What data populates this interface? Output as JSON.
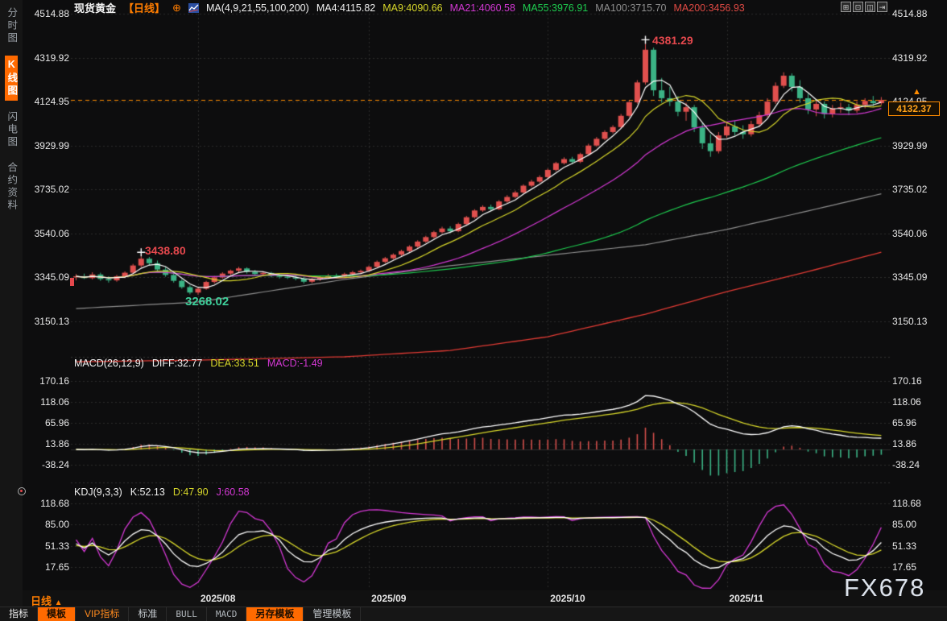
{
  "header": {
    "symbol": "现货黄金",
    "period": "【日线】",
    "add_icon": "⊕",
    "ma_title": "MA(4,9,21,55,100,200)",
    "ma_values": [
      {
        "label": "MA4:4115.82",
        "color": "#f0f0f0"
      },
      {
        "label": "MA9:4090.66",
        "color": "#d6d62a"
      },
      {
        "label": "MA21:4060.58",
        "color": "#d438d4"
      },
      {
        "label": "MA55:3976.91",
        "color": "#1ecb4f"
      },
      {
        "label": "MA100:3715.70",
        "color": "#8f8f8f"
      },
      {
        "label": "MA200:3456.93",
        "color": "#e04a44"
      }
    ],
    "window_icons": [
      "⊞",
      "⊡",
      "◫",
      "⇥"
    ]
  },
  "sidebar": {
    "items": [
      {
        "label": "分时图",
        "active": false
      },
      {
        "label": "K线图",
        "active": true
      },
      {
        "label": "闪电图",
        "active": false
      },
      {
        "label": "合约资料",
        "active": false
      }
    ]
  },
  "axes": {
    "price": [
      "4514.88",
      "4319.92",
      "4124.95",
      "3929.99",
      "3735.02",
      "3540.06",
      "3345.09",
      "3150.13"
    ],
    "macd": [
      "170.16",
      "118.06",
      "65.96",
      "13.86",
      "-38.24"
    ],
    "kdj": [
      "118.68",
      "85.00",
      "51.33",
      "17.65"
    ],
    "dates": [
      "2025/08",
      "2025/09",
      "2025/10",
      "2025/11"
    ]
  },
  "annotations": {
    "peak_high": "4381.29",
    "local_high": "3438.80",
    "local_low": "3268.02",
    "last_price_label": "4132.37",
    "up_arrow": "▲"
  },
  "macd_panel": {
    "title": "MACD(26,12,9)",
    "diff": "DIFF:32.77",
    "dea": "DEA:33.51",
    "macd": "MACD:-1.49"
  },
  "kdj_panel": {
    "title": "KDJ(9,3,3)",
    "k": "K:52.13",
    "d": "D:47.90",
    "j": "J:60.58"
  },
  "footer": {
    "period_label": "日线",
    "period_arrow": "▲",
    "tabs": [
      {
        "label": "指标",
        "style": "normal"
      },
      {
        "label": "模板",
        "style": "active"
      },
      {
        "label": "VIP指标",
        "style": "orange"
      },
      {
        "label": "标准",
        "style": "muted"
      },
      {
        "label": "BULL",
        "style": "mono"
      },
      {
        "label": "MACD",
        "style": "mono"
      },
      {
        "label": "另存模板",
        "style": "active"
      },
      {
        "label": "管理模板",
        "style": "muted"
      }
    ]
  },
  "watermark": "FX678",
  "colors": {
    "up": "#e0504e",
    "down": "#3bb385",
    "anno_red": "#e5484d",
    "anno_green": "#3ecf9a",
    "orange": "#ff8c00",
    "white": "#f0f0f0",
    "yellow": "#d6d62a",
    "magenta": "#d438d4",
    "green": "#1ecb4f",
    "gray": "#8f8f8f",
    "red_line": "#e03b34",
    "grid": "#2c2c2c",
    "hist_pos": "#d34f4b",
    "hist_neg": "#3bb385"
  },
  "chart_data": {
    "type": "candlestick",
    "title": "现货黄金 日线 (Spot Gold Daily)",
    "price_ticks": [
      4514.88,
      4319.92,
      4124.95,
      3929.99,
      3735.02,
      3540.06,
      3345.09,
      3150.13
    ],
    "macd_ticks": [
      170.16,
      118.06,
      65.96,
      13.86,
      -38.24
    ],
    "kdj_ticks": [
      118.68,
      85.0,
      51.33,
      17.65
    ],
    "last_price": 4132.37,
    "month_ticks": [
      {
        "label": "2025/08",
        "index": 15
      },
      {
        "label": "2025/09",
        "index": 36
      },
      {
        "label": "2025/10",
        "index": 58
      },
      {
        "label": "2025/11",
        "index": 80
      }
    ],
    "peak_marker_indices": [
      8,
      70
    ],
    "candles": [
      [
        3345,
        3360,
        3332,
        3350
      ],
      [
        3350,
        3362,
        3338,
        3342
      ],
      [
        3342,
        3368,
        3336,
        3358
      ],
      [
        3358,
        3366,
        3330,
        3338
      ],
      [
        3338,
        3350,
        3322,
        3332
      ],
      [
        3332,
        3356,
        3326,
        3350
      ],
      [
        3350,
        3372,
        3342,
        3366
      ],
      [
        3366,
        3405,
        3360,
        3398
      ],
      [
        3398,
        3438.8,
        3390,
        3428
      ],
      [
        3428,
        3436,
        3398,
        3408
      ],
      [
        3408,
        3420,
        3372,
        3380
      ],
      [
        3380,
        3392,
        3348,
        3356
      ],
      [
        3356,
        3366,
        3322,
        3330
      ],
      [
        3330,
        3338,
        3295,
        3302
      ],
      [
        3302,
        3310,
        3270,
        3278
      ],
      [
        3278,
        3300,
        3268.02,
        3295
      ],
      [
        3295,
        3330,
        3290,
        3325
      ],
      [
        3325,
        3352,
        3318,
        3345
      ],
      [
        3345,
        3368,
        3340,
        3362
      ],
      [
        3362,
        3380,
        3355,
        3375
      ],
      [
        3375,
        3392,
        3368,
        3385
      ],
      [
        3385,
        3390,
        3362,
        3370
      ],
      [
        3370,
        3378,
        3352,
        3360
      ],
      [
        3360,
        3372,
        3350,
        3365
      ],
      [
        3365,
        3370,
        3345,
        3352
      ],
      [
        3352,
        3360,
        3340,
        3348
      ],
      [
        3348,
        3358,
        3338,
        3344
      ],
      [
        3344,
        3355,
        3332,
        3340
      ],
      [
        3340,
        3348,
        3318,
        3326
      ],
      [
        3326,
        3342,
        3320,
        3336
      ],
      [
        3336,
        3352,
        3330,
        3346
      ],
      [
        3346,
        3360,
        3340,
        3354
      ],
      [
        3354,
        3362,
        3342,
        3348
      ],
      [
        3348,
        3366,
        3344,
        3360
      ],
      [
        3360,
        3374,
        3354,
        3368
      ],
      [
        3368,
        3380,
        3360,
        3374
      ],
      [
        3374,
        3398,
        3370,
        3392
      ],
      [
        3392,
        3420,
        3388,
        3414
      ],
      [
        3414,
        3436,
        3408,
        3430
      ],
      [
        3430,
        3452,
        3424,
        3446
      ],
      [
        3446,
        3468,
        3440,
        3462
      ],
      [
        3462,
        3488,
        3456,
        3482
      ],
      [
        3482,
        3510,
        3476,
        3504
      ],
      [
        3504,
        3530,
        3498,
        3524
      ],
      [
        3524,
        3552,
        3518,
        3546
      ],
      [
        3546,
        3570,
        3540,
        3562
      ],
      [
        3562,
        3572,
        3542,
        3550
      ],
      [
        3550,
        3588,
        3546,
        3582
      ],
      [
        3582,
        3618,
        3578,
        3612
      ],
      [
        3612,
        3648,
        3606,
        3642
      ],
      [
        3642,
        3665,
        3636,
        3658
      ],
      [
        3658,
        3668,
        3640,
        3648
      ],
      [
        3648,
        3688,
        3644,
        3682
      ],
      [
        3682,
        3710,
        3676,
        3702
      ],
      [
        3702,
        3730,
        3696,
        3722
      ],
      [
        3722,
        3758,
        3718,
        3752
      ],
      [
        3752,
        3778,
        3746,
        3770
      ],
      [
        3770,
        3798,
        3764,
        3790
      ],
      [
        3790,
        3828,
        3786,
        3822
      ],
      [
        3822,
        3858,
        3816,
        3852
      ],
      [
        3852,
        3878,
        3846,
        3870
      ],
      [
        3870,
        3880,
        3848,
        3858
      ],
      [
        3858,
        3898,
        3852,
        3892
      ],
      [
        3892,
        3938,
        3886,
        3930
      ],
      [
        3930,
        3968,
        3924,
        3960
      ],
      [
        3960,
        3998,
        3954,
        3990
      ],
      [
        3990,
        4020,
        3984,
        4012
      ],
      [
        4012,
        4070,
        4006,
        4062
      ],
      [
        4062,
        4130,
        4056,
        4122
      ],
      [
        4122,
        4220,
        4116,
        4210
      ],
      [
        4210,
        4381.29,
        4200,
        4355
      ],
      [
        4355,
        4365,
        4150,
        4175
      ],
      [
        4175,
        4230,
        4120,
        4140
      ],
      [
        4140,
        4190,
        4105,
        4125
      ],
      [
        4125,
        4150,
        4060,
        4080
      ],
      [
        4080,
        4120,
        4040,
        4100
      ],
      [
        4100,
        4110,
        3990,
        4010
      ],
      [
        4010,
        4030,
        3915,
        3940
      ],
      [
        3940,
        3980,
        3880,
        3905
      ],
      [
        3905,
        3990,
        3895,
        3975
      ],
      [
        3975,
        4030,
        3965,
        4015
      ],
      [
        4015,
        4040,
        3975,
        3990
      ],
      [
        3990,
        4020,
        3960,
        3980
      ],
      [
        3980,
        4040,
        3970,
        4025
      ],
      [
        4025,
        4080,
        4015,
        4065
      ],
      [
        4065,
        4140,
        4055,
        4125
      ],
      [
        4125,
        4210,
        4115,
        4195
      ],
      [
        4195,
        4255,
        4185,
        4240
      ],
      [
        4240,
        4250,
        4170,
        4190
      ],
      [
        4190,
        4220,
        4120,
        4140
      ],
      [
        4140,
        4160,
        4070,
        4090
      ],
      [
        4090,
        4130,
        4060,
        4115
      ],
      [
        4115,
        4125,
        4050,
        4070
      ],
      [
        4070,
        4110,
        4055,
        4095
      ],
      [
        4095,
        4120,
        4075,
        4100
      ],
      [
        4100,
        4115,
        4065,
        4085
      ],
      [
        4085,
        4125,
        4075,
        4110
      ],
      [
        4110,
        4140,
        4095,
        4128
      ],
      [
        4128,
        4150,
        4105,
        4118
      ],
      [
        4118,
        4145,
        4110,
        4132.37
      ]
    ],
    "ma_overlays": {
      "ma100": [
        [
          0,
          3207
        ],
        [
          15,
          3236
        ],
        [
          33,
          3336
        ],
        [
          46,
          3397
        ],
        [
          58,
          3443
        ],
        [
          70,
          3490
        ],
        [
          80,
          3558
        ],
        [
          90,
          3640
        ],
        [
          99,
          3716
        ]
      ],
      "ma200": [
        [
          0,
          2971
        ],
        [
          15,
          2978
        ],
        [
          33,
          2993
        ],
        [
          46,
          3021
        ],
        [
          58,
          3082
        ],
        [
          70,
          3182
        ],
        [
          80,
          3282
        ],
        [
          90,
          3371
        ],
        [
          99,
          3457
        ]
      ]
    }
  }
}
